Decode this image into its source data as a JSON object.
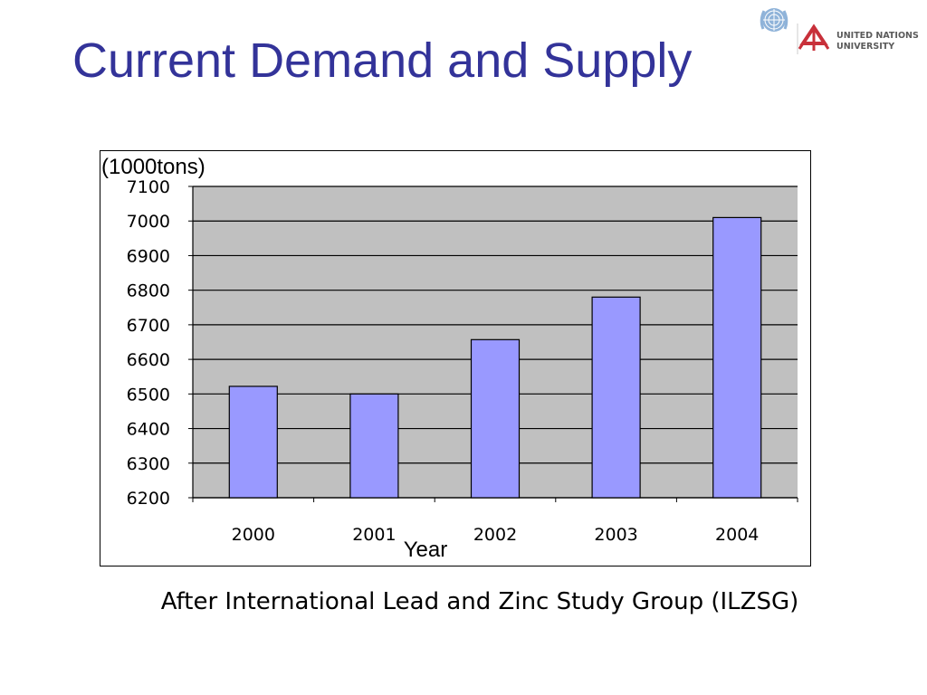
{
  "slide": {
    "title": "Current Demand and Supply",
    "source": "After International Lead and Zinc Study Group (ILZSG)",
    "title_color": "#333399"
  },
  "logos": {
    "un_emblem_icon": "un-emblem-icon",
    "unu_mark_icon": "unu-mark-icon",
    "unu_text": [
      "UNITED NATIONS",
      "UNIVERSITY"
    ]
  },
  "chart_data": {
    "type": "bar",
    "ylabel": "(1000tons)",
    "xlabel": "Year",
    "categories": [
      "2000",
      "2001",
      "2002",
      "2003",
      "2004"
    ],
    "values": [
      6522,
      6500,
      6657,
      6780,
      7010
    ],
    "ylim": [
      6200,
      7100
    ],
    "yticks": [
      "6200",
      "6300",
      "6400",
      "6500",
      "6600",
      "6700",
      "6800",
      "6900",
      "7000",
      "7100"
    ],
    "grid": true,
    "legend": "none",
    "colors": {
      "bar_fill": "#9999ff",
      "plot_background": "#c0c0c0",
      "gridline": "#000000"
    }
  }
}
